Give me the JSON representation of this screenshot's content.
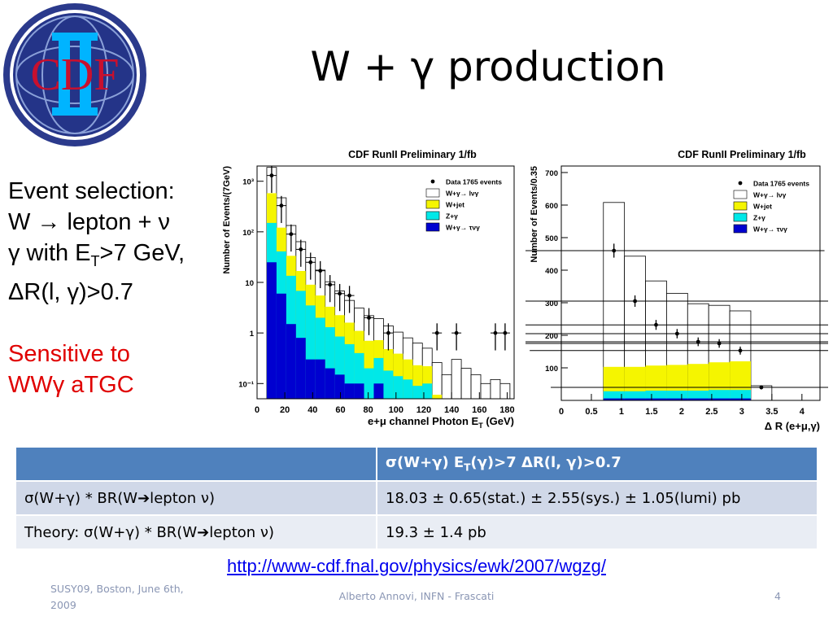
{
  "title": "W + γ production",
  "logo_text": "CDF",
  "left_text": {
    "lines": [
      "Event selection:",
      "W → lepton + ν",
      "γ with E",
      "T",
      ">7 GeV,",
      "ΔR(l, γ)>0.7"
    ],
    "sensitive": [
      "Sensitive to",
      "WWγ aTGC"
    ]
  },
  "colors": {
    "accent_red": "#e00000",
    "table_header": "#4f81bd",
    "row_dark": "#d0d8e8",
    "row_light": "#e9edf4",
    "data_line": "#000000"
  },
  "chart_data": [
    {
      "type": "bar",
      "title": "CDF RunII Preliminary 1/fb",
      "xlabel": "e+μ channel Photon E",
      "xlabel_sub": "T",
      "xlabel_unit": " (GeV)",
      "ylabel": "Number of Events/(7GeV)",
      "scale": "log",
      "xlim": [
        0,
        185
      ],
      "ylim": [
        0.05,
        2000
      ],
      "xticks": [
        "0",
        "20",
        "40",
        "60",
        "80",
        "100",
        "120",
        "140",
        "160",
        "180"
      ],
      "yticks": [
        "10⁻¹",
        "1",
        "10",
        "10²",
        "10³"
      ],
      "legend": [
        "Data 1765 events",
        "W+γ→ lνγ",
        "W+jet",
        "Z+γ",
        "W+γ→ τνγ"
      ],
      "legend_position": "top-right",
      "bin_edges": [
        7,
        14,
        21,
        28,
        35,
        42,
        49,
        56,
        63,
        70,
        77,
        84,
        91,
        98,
        105,
        112,
        119,
        126,
        133,
        140,
        147,
        154,
        161,
        168,
        175,
        182
      ],
      "series": [
        {
          "name": "W+γ→ τνγ",
          "color": "#0000d0",
          "values": [
            25,
            6,
            1.5,
            0.8,
            0.3,
            0.3,
            0.2,
            0.15,
            0.1,
            0.1,
            0,
            0.1,
            0,
            0,
            0,
            0,
            0,
            0,
            0,
            0,
            0,
            0,
            0,
            0,
            0
          ]
        },
        {
          "name": "Z+γ",
          "color": "#00e8e8",
          "values": [
            125,
            35,
            12,
            6,
            3.2,
            1.7,
            1.1,
            0.7,
            0.5,
            0.3,
            0.2,
            0.22,
            0.18,
            0.14,
            0.12,
            0.09,
            0.1,
            0,
            0,
            0,
            0,
            0,
            0,
            0,
            0
          ]
        },
        {
          "name": "W+jet",
          "color": "#f5f500",
          "values": [
            430,
            80,
            20,
            10,
            5.5,
            3.5,
            2,
            1.4,
            1,
            0.7,
            0.5,
            0.4,
            0.3,
            0.25,
            0.18,
            0.14,
            0.12,
            0.06,
            0,
            0,
            0,
            0,
            0,
            0,
            0
          ]
        },
        {
          "name": "W+γ→ lνγ",
          "color": "#ffffff",
          "values": [
            1300,
            350,
            100,
            47,
            22,
            12,
            7,
            4.5,
            2.8,
            2,
            1.5,
            1.2,
            0.9,
            0.65,
            0.5,
            0.4,
            0.28,
            0.2,
            0.15,
            0.3,
            0.2,
            0.15,
            0.1,
            0.12,
            0.1
          ]
        }
      ],
      "data_points": {
        "x": [
          10.5,
          17.5,
          24.5,
          31.5,
          38.5,
          45.5,
          52.5,
          59.5,
          66.5,
          80.5,
          94.5,
          129.5,
          143.5,
          171.5,
          178.5
        ],
        "y": [
          1300,
          330,
          90,
          45,
          25,
          17,
          9,
          6,
          5.5,
          2,
          1,
          1,
          1,
          1,
          1
        ]
      }
    },
    {
      "type": "bar",
      "title": "CDF RunII Preliminary 1/fb",
      "xlabel": "Δ R (e+μ,γ)",
      "ylabel": "Number of Events/0.35",
      "scale": "linear",
      "xlim": [
        0,
        4.3
      ],
      "ylim": [
        0,
        720
      ],
      "xticks": [
        "0",
        "0.5",
        "1",
        "1.5",
        "2",
        "2.5",
        "3",
        "3.5",
        "4"
      ],
      "yticks": [
        "100",
        "200",
        "300",
        "400",
        "500",
        "600",
        "700"
      ],
      "legend": [
        "Data 1765 events",
        "W+γ→ lνγ",
        "W+jet",
        "Z+γ",
        "W+γ→ τνγ"
      ],
      "legend_position": "top-right",
      "bin_edges": [
        0.7,
        1.05,
        1.4,
        1.75,
        2.1,
        2.45,
        2.8,
        3.15,
        3.5
      ],
      "series": [
        {
          "name": "W+γ→ τνγ",
          "color": "#0000d0",
          "values": [
            6,
            6,
            6,
            6,
            6,
            6,
            6,
            0
          ]
        },
        {
          "name": "Z+γ",
          "color": "#00e8e8",
          "values": [
            22,
            22,
            24,
            24,
            24,
            26,
            26,
            0
          ]
        },
        {
          "name": "W+jet",
          "color": "#f5f500",
          "values": [
            75,
            75,
            77,
            79,
            82,
            85,
            88,
            0
          ]
        },
        {
          "name": "W+γ→ lνγ",
          "color": "#ffffff",
          "values": [
            505,
            340,
            260,
            220,
            185,
            175,
            155,
            45
          ]
        }
      ],
      "data_points": {
        "x": [
          0.875,
          1.225,
          1.575,
          1.925,
          2.275,
          2.625,
          2.975,
          3.325
        ],
        "y": [
          460,
          305,
          232,
          205,
          180,
          175,
          153,
          40
        ]
      }
    }
  ],
  "table": {
    "header": [
      "",
      "σ(W+γ) E",
      "T",
      "(γ)>7 ΔR(l, γ)>0.7"
    ],
    "rows": [
      [
        "σ(W+γ) * BR(W➔lepton ν)",
        "18.03 ± 0.65(stat.) ± 2.55(sys.) ± 1.05(lumi) pb"
      ],
      [
        "Theory: σ(W+γ) * BR(W➔lepton ν)",
        "19.3 ± 1.4 pb"
      ]
    ]
  },
  "url": "http://www-cdf.fnal.gov/physics/ewk/2007/wgzg/",
  "footer": {
    "left": [
      "SUSY09, Boston, June 6th,",
      "2009"
    ],
    "center": "Alberto Annovi, INFN - Frascati",
    "right": "4"
  }
}
